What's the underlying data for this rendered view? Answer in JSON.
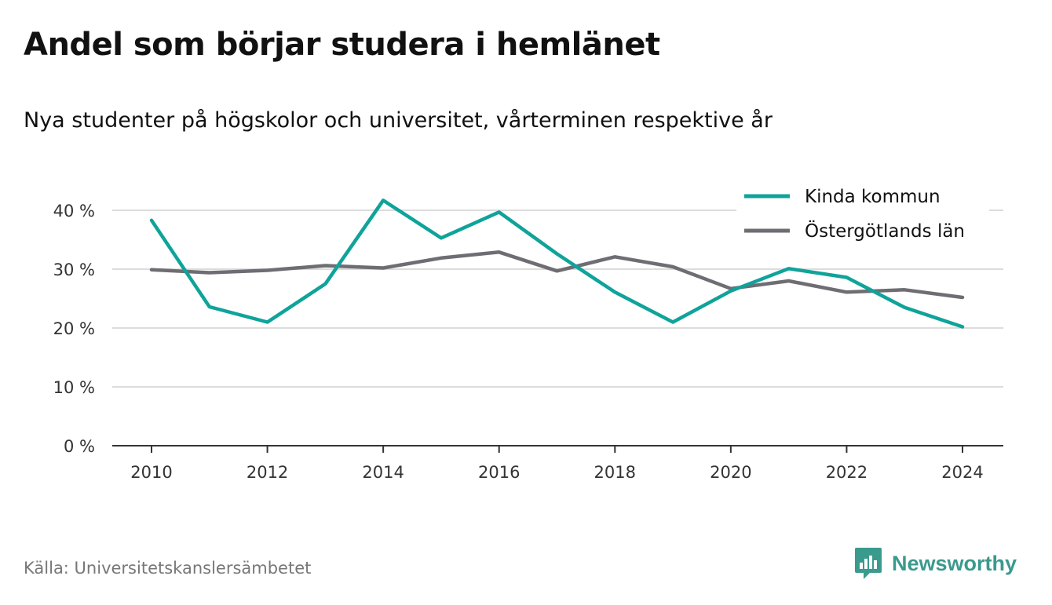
{
  "header": {
    "title": "Andel som börjar studera i hemlänet",
    "subtitle": "Nya studenter på högskolor och universitet, vårterminen respektive år"
  },
  "footer": {
    "source": "Källa: Universitetskanslersämbetet",
    "brand_name": "Newsworthy",
    "brand_icon": "bar-chart-speech-bubble-icon",
    "brand_color": "#3a9a8d"
  },
  "chart_data": {
    "type": "line",
    "x": [
      2010,
      2011,
      2012,
      2013,
      2014,
      2015,
      2016,
      2017,
      2018,
      2019,
      2020,
      2021,
      2022,
      2023,
      2024
    ],
    "x_ticks": [
      "2010",
      "2012",
      "2014",
      "2016",
      "2018",
      "2020",
      "2022",
      "2024"
    ],
    "y_ticks": [
      "0 %",
      "10 %",
      "20 %",
      "30 %",
      "40 %"
    ],
    "ylim": [
      0,
      40
    ],
    "grid": true,
    "legend_position": "top-right",
    "series": [
      {
        "name": "Kinda kommun",
        "color": "#0fa39a",
        "values": [
          38.3,
          23.6,
          21.0,
          27.5,
          41.7,
          35.3,
          39.7,
          32.6,
          26.1,
          21.0,
          26.3,
          30.1,
          28.6,
          23.5,
          20.2
        ]
      },
      {
        "name": "Östergötlands län",
        "color": "#6e6d73",
        "values": [
          29.9,
          29.4,
          29.8,
          30.6,
          30.2,
          31.9,
          32.9,
          29.7,
          32.1,
          30.4,
          26.7,
          28.0,
          26.1,
          26.5,
          25.2
        ]
      }
    ]
  }
}
